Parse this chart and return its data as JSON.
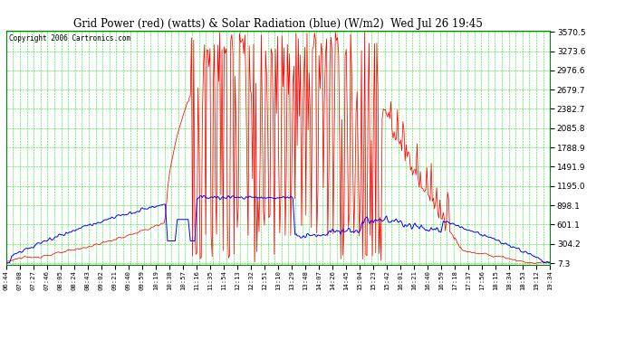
{
  "title": "Grid Power (red) (watts) & Solar Radiation (blue) (W/m2)  Wed Jul 26 19:45",
  "copyright": "Copyright 2006 Cartronics.com",
  "bg_color": "#ffffff",
  "plot_bg_color": "#ffffff",
  "grid_color": "#00dd00",
  "title_color": "#000000",
  "copyright_color": "#000000",
  "red_color": "#ff0000",
  "blue_color": "#0000ff",
  "yticks": [
    7.3,
    304.2,
    601.1,
    898.1,
    1195.0,
    1491.9,
    1788.9,
    2085.8,
    2382.7,
    2679.7,
    2976.6,
    3273.6,
    3570.5
  ],
  "ymin": 7.3,
  "ymax": 3570.5,
  "xtick_labels": [
    "06:44",
    "07:08",
    "07:27",
    "07:46",
    "08:05",
    "08:24",
    "08:43",
    "09:02",
    "09:21",
    "09:40",
    "09:59",
    "10:19",
    "10:38",
    "10:57",
    "11:16",
    "11:35",
    "11:54",
    "12:13",
    "12:32",
    "12:51",
    "13:10",
    "13:29",
    "13:48",
    "14:07",
    "14:26",
    "14:45",
    "15:04",
    "15:23",
    "15:42",
    "16:01",
    "16:21",
    "16:40",
    "16:59",
    "17:18",
    "17:37",
    "17:56",
    "18:15",
    "18:34",
    "18:53",
    "19:12",
    "19:34"
  ]
}
